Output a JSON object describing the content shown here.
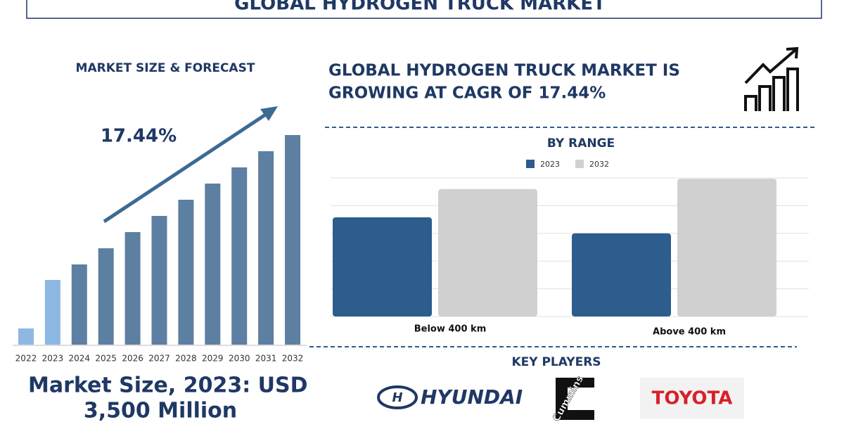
{
  "header": {
    "title": "GLOBAL HYDROGEN TRUCK MARKET"
  },
  "headline": {
    "line1": "GLOBAL HYDROGEN TRUCK MARKET IS",
    "line2": "GROWING AT CAGR OF 17.44%"
  },
  "chart_data": [
    {
      "type": "bar",
      "title": "MARKET SIZE & FORECAST",
      "annotation": "17.44%",
      "categories": [
        "2022",
        "2023",
        "2024",
        "2025",
        "2026",
        "2027",
        "2028",
        "2029",
        "2030",
        "2031",
        "2032"
      ],
      "values": [
        23,
        92,
        114,
        137,
        160,
        183,
        206,
        229,
        252,
        275,
        298
      ],
      "colors": [
        "#8db8e3",
        "#8db8e3",
        "#5d7fa2",
        "#5d7fa2",
        "#5d7fa2",
        "#5d7fa2",
        "#5d7fa2",
        "#5d7fa2",
        "#5d7fa2",
        "#5d7fa2",
        "#5d7fa2"
      ],
      "ylim": [
        0,
        300
      ]
    },
    {
      "type": "grouped-bar",
      "title": "BY RANGE",
      "categories": [
        "Below 400 km",
        "Above 400 km"
      ],
      "series": [
        {
          "name": "2023",
          "color": "#2d5d8c",
          "values": [
            3.58,
            3.0
          ]
        },
        {
          "name": "2032",
          "color": "#d0d0d0",
          "values": [
            4.6,
            4.97
          ]
        }
      ],
      "ylim": [
        0,
        5
      ],
      "yticks": [
        0,
        1,
        2,
        3,
        4,
        5
      ],
      "grid": true
    }
  ],
  "footer": {
    "line1": "Market Size, 2023: USD",
    "line2": "3,500 Million"
  },
  "key_players": {
    "title": "KEY PLAYERS",
    "logos": [
      "HYUNDAI",
      "Cummins",
      "TOYOTA"
    ]
  }
}
